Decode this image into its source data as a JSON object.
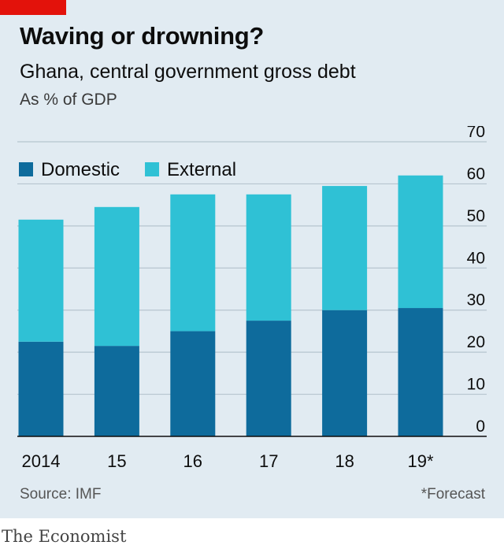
{
  "header": {
    "title": "Waving or drowning?",
    "subtitle": "Ghana, central government gross debt",
    "unit": "As % of GDP"
  },
  "footer": {
    "source": "Source: IMF",
    "note": "*Forecast"
  },
  "brand": {
    "logo": "The Economist",
    "accent_color": "#e3120b",
    "panel_color": "#e1ebf2"
  },
  "chart_data": {
    "type": "bar",
    "stacked": true,
    "categories": [
      "2014",
      "15",
      "16",
      "17",
      "18",
      "19*"
    ],
    "series": [
      {
        "name": "Domestic",
        "color": "#0e6b9c",
        "values": [
          22.5,
          21.5,
          25,
          27.5,
          30,
          30.5
        ]
      },
      {
        "name": "External",
        "color": "#2fc1d5",
        "values": [
          29,
          33,
          32.5,
          30,
          29.5,
          31.5
        ]
      }
    ],
    "yticks": [
      0,
      10,
      20,
      30,
      40,
      50,
      60,
      70
    ],
    "ylim": [
      0,
      70
    ],
    "y_axis_position": "right",
    "grid": true,
    "legend_position": "top-left"
  }
}
